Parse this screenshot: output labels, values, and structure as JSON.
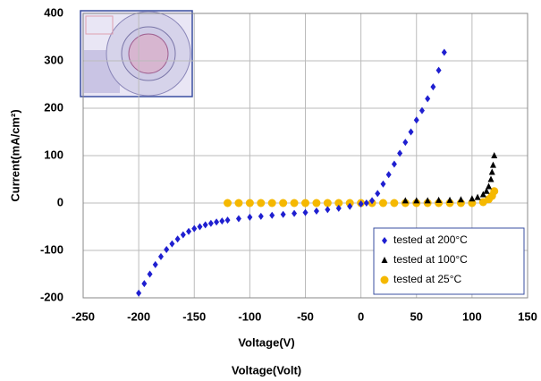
{
  "chart_data": {
    "type": "scatter",
    "xlabel": "Voltage(V)",
    "ylabel": "Current(mA/cm²)",
    "caption": "Voltage(Volt)",
    "xlim": [
      -250,
      150
    ],
    "xticks": [
      -250,
      -200,
      -150,
      -100,
      -50,
      0,
      50,
      100,
      150
    ],
    "ylim": [
      -200,
      400
    ],
    "yticks": [
      -200,
      -100,
      0,
      100,
      200,
      300,
      400
    ],
    "grid": true,
    "legend": "lower right",
    "series": [
      {
        "name": "tested at 200°C",
        "color": "#1f1fd0",
        "marker": "diamond",
        "x": [
          -200,
          -195,
          -190,
          -185,
          -180,
          -175,
          -170,
          -165,
          -160,
          -155,
          -150,
          -145,
          -140,
          -135,
          -130,
          -125,
          -120,
          -110,
          -100,
          -90,
          -80,
          -70,
          -60,
          -50,
          -40,
          -30,
          -20,
          -10,
          0,
          5,
          10,
          15,
          20,
          25,
          30,
          35,
          40,
          45,
          50,
          55,
          60,
          65,
          70,
          75
        ],
        "values": [
          -190,
          -170,
          -150,
          -130,
          -113,
          -98,
          -86,
          -76,
          -67,
          -60,
          -54,
          -50,
          -46,
          -43,
          -40,
          -38,
          -36,
          -33,
          -30,
          -28,
          -26,
          -24,
          -22,
          -20,
          -17,
          -14,
          -11,
          -7,
          -2,
          0,
          5,
          20,
          40,
          60,
          82,
          105,
          128,
          150,
          175,
          195,
          220,
          245,
          280,
          318
        ]
      },
      {
        "name": "tested at 100°C",
        "color": "#000000",
        "marker": "triangle",
        "x": [
          40,
          50,
          60,
          70,
          80,
          90,
          100,
          105,
          110,
          113,
          115,
          117,
          118,
          119,
          120
        ],
        "values": [
          5,
          5,
          5,
          6,
          6,
          7,
          9,
          12,
          18,
          25,
          35,
          50,
          65,
          80,
          100
        ]
      },
      {
        "name": "tested at 25°C",
        "color": "#f5b800",
        "marker": "circle",
        "x": [
          -120,
          -110,
          -100,
          -90,
          -80,
          -70,
          -60,
          -50,
          -40,
          -30,
          -20,
          -10,
          0,
          10,
          20,
          30,
          40,
          50,
          60,
          70,
          80,
          90,
          100,
          110,
          115,
          118,
          120
        ],
        "values": [
          0,
          0,
          0,
          0,
          0,
          0,
          0,
          0,
          0,
          0,
          0,
          0,
          0,
          0,
          0,
          0,
          0,
          0,
          0,
          0,
          0,
          0,
          0,
          2,
          8,
          15,
          25
        ]
      }
    ]
  }
}
